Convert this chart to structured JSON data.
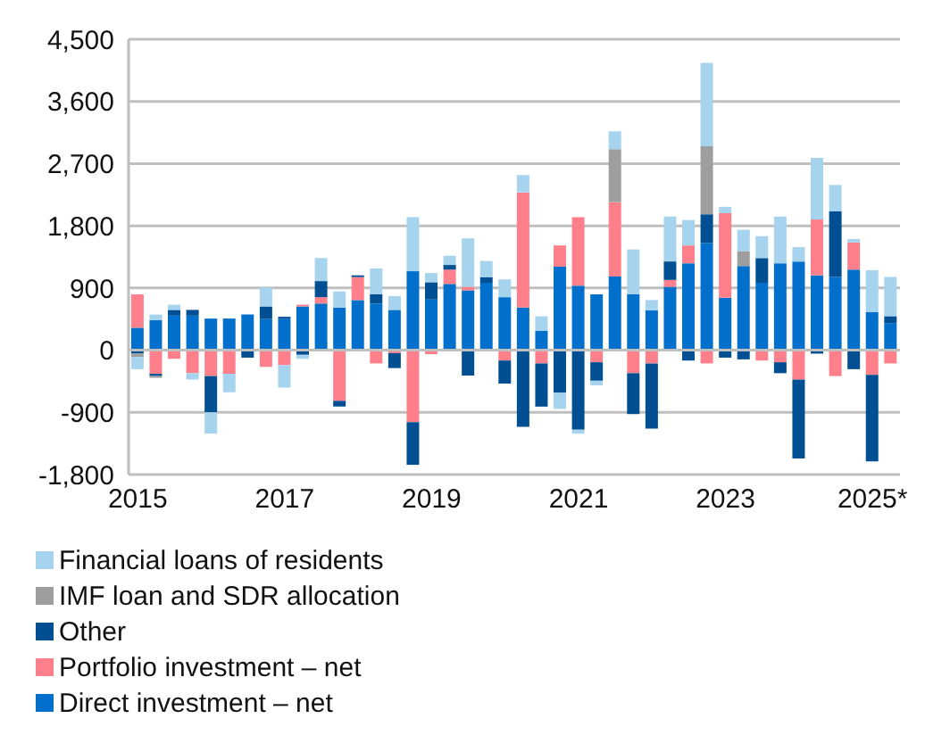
{
  "chart_data": {
    "type": "bar",
    "stacked": true,
    "grid": "y",
    "legend": "bottom left",
    "categories": [
      "2015",
      null,
      null,
      null,
      null,
      null,
      null,
      null,
      "2017",
      null,
      null,
      null,
      null,
      null,
      null,
      null,
      "2019",
      null,
      null,
      null,
      null,
      null,
      null,
      null,
      "2021",
      null,
      null,
      null,
      null,
      null,
      null,
      null,
      "2023",
      null,
      null,
      null,
      null,
      null,
      null,
      null,
      "2025*",
      null
    ],
    "ylim": [
      -1800,
      4500
    ],
    "yticks": [
      {
        "value": -1800,
        "label": "-1,800"
      },
      {
        "value": -900,
        "label": "-900"
      },
      0,
      {
        "value": 900,
        "label": "900"
      },
      {
        "value": 1800,
        "label": "1,800"
      },
      {
        "value": 2700,
        "label": "2,700"
      },
      {
        "value": 3600,
        "label": "3,600"
      },
      {
        "value": 4500,
        "label": "4,500"
      }
    ],
    "series": [
      {
        "name": "Direct investment – net",
        "color": "#0070cc",
        "values": [
          325,
          433,
          500,
          500,
          458,
          458,
          517,
          450,
          450,
          633,
          675,
          617,
          725,
          675,
          583,
          1142,
          733,
          958,
          867,
          975,
          767,
          617,
          283,
          1208,
          933,
          808,
          1067,
          808,
          575,
          917,
          1258,
          1550,
          758,
          1217,
          975,
          1258,
          1283,
          1083,
          1058,
          1167,
          550,
          392
        ]
      },
      {
        "name": "Portfolio investment – net",
        "color": "#ff7f8a",
        "values": [
          483,
          -342,
          -125,
          -333,
          -375,
          -342,
          null,
          -242,
          -217,
          25,
          92,
          -733,
          333,
          -192,
          -42,
          -1042,
          -58,
          208,
          50,
          null,
          -150,
          1667,
          -192,
          308,
          992,
          -175,
          1075,
          -333,
          -192,
          100,
          258,
          -192,
          1225,
          null,
          -150,
          -175,
          -425,
          808,
          -375,
          392,
          -358,
          -192
        ]
      },
      {
        "name": "Other",
        "color": "#004f93",
        "values": [
          -50,
          -33,
          83,
          83,
          -525,
          null,
          -108,
          183,
          33,
          -67,
          233,
          -83,
          25,
          133,
          -217,
          -617,
          250,
          67,
          -367,
          83,
          -333,
          -1108,
          -625,
          -617,
          -1150,
          -267,
          null,
          -592,
          -942,
          267,
          -150,
          417,
          -108,
          -133,
          358,
          -158,
          -1142,
          -50,
          950,
          -275,
          -1250,
          100
        ]
      },
      {
        "name": "IMF loan and SDR allocation",
        "color": "#9e9e9e",
        "values": [
          -50,
          -25,
          null,
          null,
          null,
          null,
          null,
          null,
          null,
          null,
          null,
          null,
          null,
          null,
          null,
          null,
          null,
          null,
          null,
          null,
          null,
          null,
          null,
          null,
          null,
          null,
          767,
          null,
          null,
          null,
          null,
          983,
          null,
          217,
          null,
          null,
          null,
          null,
          null,
          null,
          null,
          null
        ]
      },
      {
        "name": "Financial loans of residents",
        "color": "#a6d3ee",
        "values": [
          -175,
          83,
          75,
          -92,
          -308,
          -267,
          null,
          275,
          -325,
          -58,
          333,
          233,
          null,
          375,
          200,
          783,
          133,
          133,
          700,
          233,
          258,
          250,
          208,
          -233,
          -58,
          -67,
          258,
          650,
          150,
          650,
          367,
          1208,
          92,
          308,
          317,
          675,
          208,
          892,
          383,
          50,
          608,
          567
        ]
      }
    ]
  }
}
